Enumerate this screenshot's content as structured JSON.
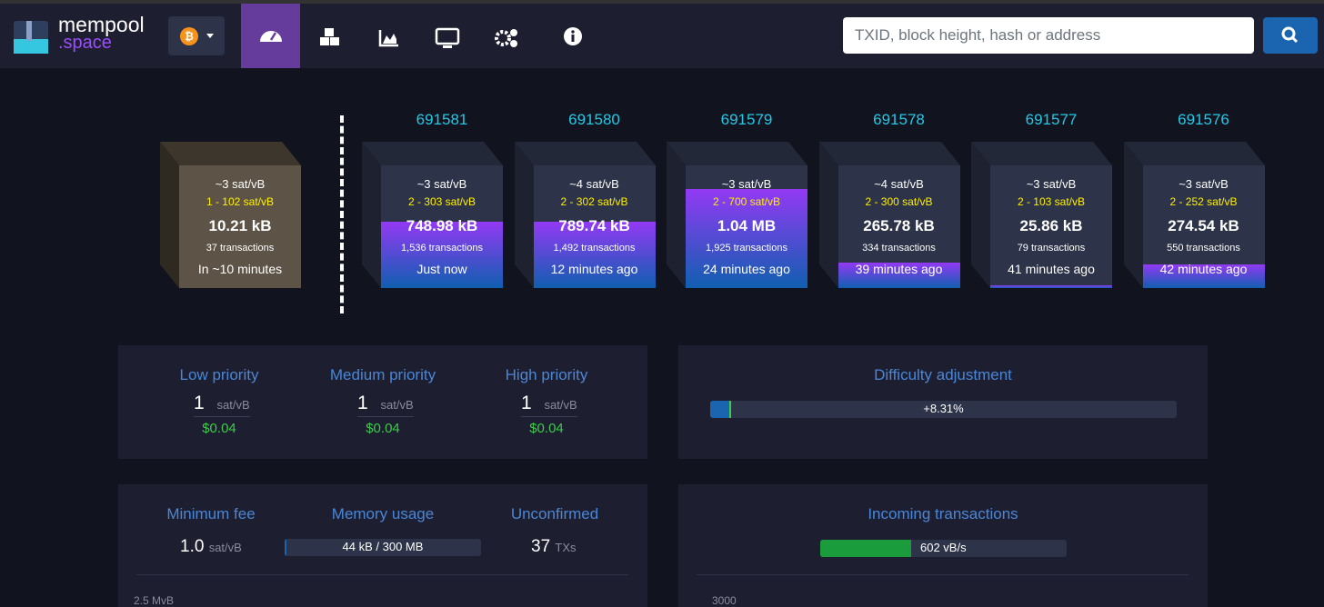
{
  "header": {
    "logo": {
      "line1": "mempool",
      "line2": ".space"
    },
    "search_placeholder": "TXID, block height, hash or address"
  },
  "mempool_block": {
    "fee_median": "~3 sat/vB",
    "fee_range": "1 - 102 sat/vB",
    "size": "10.21 kB",
    "transactions": "37 transactions",
    "time": "In ~10 minutes"
  },
  "blocks": [
    {
      "height": "691581",
      "fee_median": "~3 sat/vB",
      "fee_range": "2 - 303 sat/vB",
      "size": "748.98 kB",
      "transactions": "1,536 transactions",
      "time": "Just now",
      "fill": 54
    },
    {
      "height": "691580",
      "fee_median": "~4 sat/vB",
      "fee_range": "2 - 302 sat/vB",
      "size": "789.74 kB",
      "transactions": "1,492 transactions",
      "time": "12 minutes ago",
      "fill": 54
    },
    {
      "height": "691579",
      "fee_median": "~3 sat/vB",
      "fee_range": "2 - 700 sat/vB",
      "size": "1.04 MB",
      "transactions": "1,925 transactions",
      "time": "24 minutes ago",
      "fill": 81
    },
    {
      "height": "691578",
      "fee_median": "~4 sat/vB",
      "fee_range": "2 - 300 sat/vB",
      "size": "265.78 kB",
      "transactions": "334 transactions",
      "time": "39 minutes ago",
      "fill": 21
    },
    {
      "height": "691577",
      "fee_median": "~3 sat/vB",
      "fee_range": "2 - 103 sat/vB",
      "size": "25.86 kB",
      "transactions": "79 transactions",
      "time": "41 minutes ago",
      "fill": 2
    },
    {
      "height": "691576",
      "fee_median": "~3 sat/vB",
      "fee_range": "2 - 252 sat/vB",
      "size": "274.54 kB",
      "transactions": "550 transactions",
      "time": "42 minutes ago",
      "fill": 19
    }
  ],
  "fees": [
    {
      "label": "Low priority",
      "value": "1",
      "unit": "sat/vB",
      "usd": "$0.04"
    },
    {
      "label": "Medium priority",
      "value": "1",
      "unit": "sat/vB",
      "usd": "$0.04"
    },
    {
      "label": "High priority",
      "value": "1",
      "unit": "sat/vB",
      "usd": "$0.04"
    }
  ],
  "difficulty": {
    "title": "Difficulty adjustment",
    "change": "+8.31%",
    "progress": 4
  },
  "stats": {
    "minimum_fee": {
      "label": "Minimum fee",
      "value": "1.0",
      "unit": "sat/vB"
    },
    "memory_usage": {
      "label": "Memory usage",
      "value": "44 kB / 300 MB",
      "progress": 1
    },
    "unconfirmed": {
      "label": "Unconfirmed",
      "value": "37",
      "unit": "TXs"
    },
    "chart_label": "2.5 MvB"
  },
  "incoming": {
    "title": "Incoming transactions",
    "rate": "602 vB/s",
    "progress": 37,
    "chart_label": "3000"
  }
}
